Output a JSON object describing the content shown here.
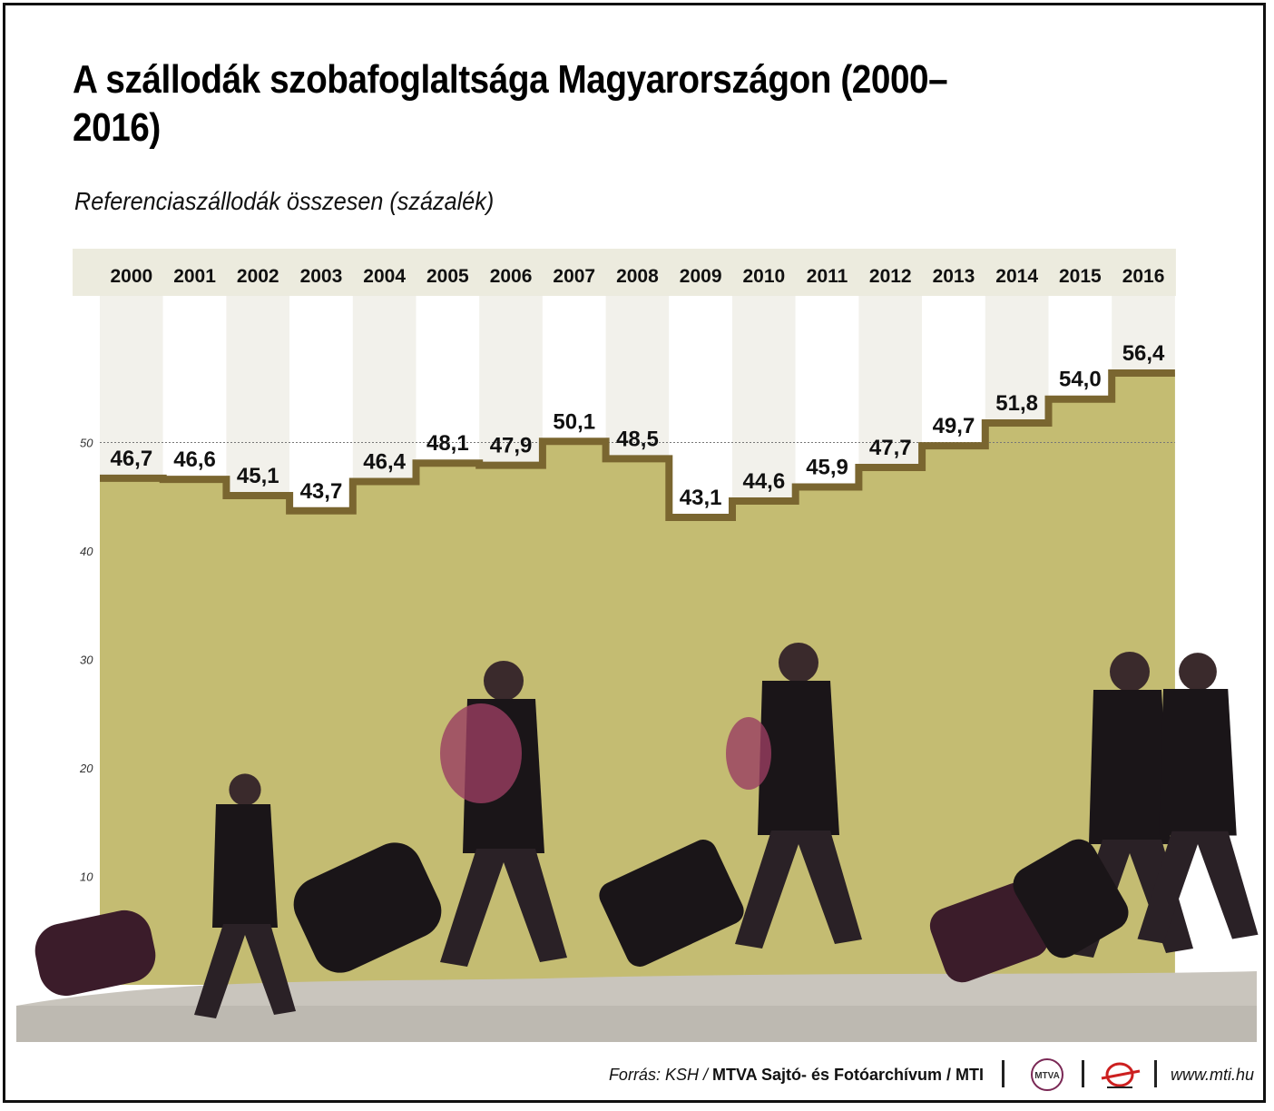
{
  "title": "A szállodák szobafoglaltsága Magyarországon (2000–2016)",
  "subtitle": "Referenciaszállodák összesen (százalék)",
  "chart_data": {
    "type": "line",
    "step": true,
    "title": "A szállodák szobafoglaltsága Magyarországon (2000–2016)",
    "subtitle": "Referenciaszállodák összesen (százalék)",
    "categories": [
      "2000",
      "2001",
      "2002",
      "2003",
      "2004",
      "2005",
      "2006",
      "2007",
      "2008",
      "2009",
      "2010",
      "2011",
      "2012",
      "2013",
      "2014",
      "2015",
      "2016"
    ],
    "values": [
      46.7,
      46.6,
      45.1,
      43.7,
      46.4,
      48.1,
      47.9,
      50.1,
      48.5,
      43.1,
      44.6,
      45.9,
      47.7,
      49.7,
      51.8,
      54.0,
      56.4
    ],
    "value_labels": [
      "46,7",
      "46,6",
      "45,1",
      "43,7",
      "46,4",
      "48,1",
      "47,9",
      "50,1",
      "48,5",
      "43,1",
      "44,6",
      "45,9",
      "47,7",
      "49,7",
      "51,8",
      "54,0",
      "56,4"
    ],
    "ylim": [
      0,
      60
    ],
    "yticks": [
      10,
      20,
      30,
      40,
      50
    ],
    "reference_line": 50,
    "colors": {
      "fill": "#c4bc72",
      "line": "#7a6630",
      "band_light": "#f2f1eb",
      "band_white": "#ffffff",
      "header": "#ecebde",
      "reference": "#777777"
    }
  },
  "footer": {
    "source_lead": "Forrás: KSH / ",
    "source_main": "MTVA Sajtó- és Fotóarchívum / MTI",
    "mtva_logo_text": "MTVA",
    "website": "www.mti.hu"
  }
}
